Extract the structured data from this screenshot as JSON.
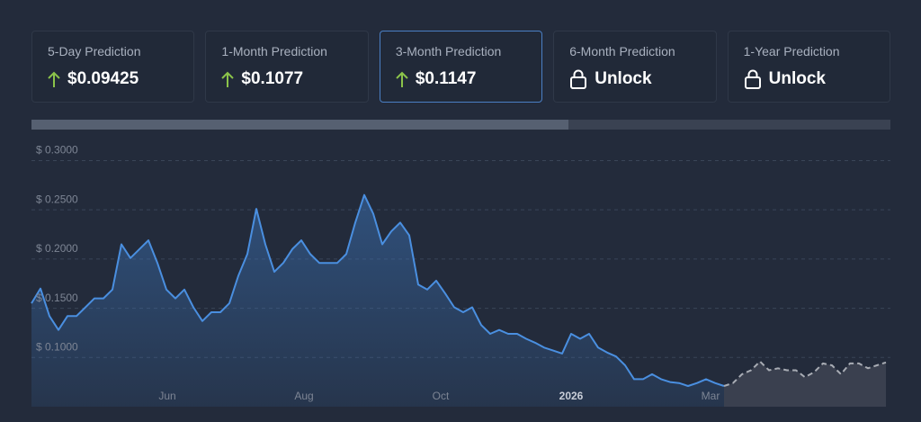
{
  "cards": [
    {
      "label": "5-Day Prediction",
      "value": "$0.09425",
      "icon": "up",
      "active": false
    },
    {
      "label": "1-Month Prediction",
      "value": "$0.1077",
      "icon": "up",
      "active": false
    },
    {
      "label": "3-Month Prediction",
      "value": "$0.1147",
      "icon": "up",
      "active": true
    },
    {
      "label": "6-Month Prediction",
      "value": "Unlock",
      "icon": "lock",
      "active": false
    },
    {
      "label": "1-Year Prediction",
      "value": "Unlock",
      "icon": "lock",
      "active": false
    }
  ],
  "chart_data": {
    "type": "line",
    "x": [
      0,
      1,
      2,
      3,
      4,
      5,
      6,
      7,
      8,
      9,
      10,
      11,
      12,
      13,
      14,
      15,
      16,
      17,
      18,
      19,
      20,
      21,
      22,
      23,
      24,
      25,
      26,
      27,
      28,
      29,
      30,
      31,
      32,
      33,
      34,
      35,
      36,
      37,
      38,
      39,
      40,
      41,
      42,
      43,
      44,
      45,
      46,
      47,
      48,
      49,
      50,
      51,
      52,
      53,
      54,
      55,
      56,
      57,
      58,
      59,
      60,
      61,
      62,
      63,
      64,
      65,
      66,
      67,
      68,
      69,
      70,
      71,
      72,
      73,
      74,
      75,
      76,
      77,
      78,
      79,
      80,
      81,
      82,
      83,
      84,
      85,
      86,
      87,
      88,
      89,
      90,
      91,
      92,
      93,
      94,
      95
    ],
    "series": [
      {
        "color": "#4a8fe0",
        "dashed": false,
        "fill": "#3a6fb0",
        "values": [
          0.155,
          0.17,
          0.142,
          0.128,
          0.142,
          0.142,
          0.151,
          0.16,
          0.16,
          0.169,
          0.215,
          0.201,
          0.21,
          0.219,
          0.196,
          0.169,
          0.16,
          0.169,
          0.151,
          0.137,
          0.146,
          0.146,
          0.155,
          0.183,
          0.205,
          0.251,
          0.215,
          0.187,
          0.196,
          0.21,
          0.219,
          0.205,
          0.196,
          0.196,
          0.196,
          0.205,
          0.237,
          0.265,
          0.246,
          0.215,
          0.228,
          0.237,
          0.224,
          0.174,
          0.169,
          0.178,
          0.165,
          0.151,
          0.146,
          0.151,
          0.133,
          0.124,
          0.128,
          0.124,
          0.124,
          0.119,
          0.115,
          0.11,
          0.107,
          0.104,
          0.124,
          0.119,
          0.124,
          0.11,
          0.105,
          0.101,
          0.092,
          0.078,
          0.078,
          0.083,
          0.078,
          0.075,
          0.074,
          0.071,
          0.074,
          0.078,
          0.074,
          0.071,
          null,
          null,
          null,
          null,
          null,
          null,
          null,
          null,
          null,
          null,
          null,
          null,
          null,
          null,
          null,
          null,
          null,
          null
        ]
      },
      {
        "color": "#a8acb4",
        "dashed": true,
        "fill": "#3a404f",
        "values": [
          null,
          null,
          null,
          null,
          null,
          null,
          null,
          null,
          null,
          null,
          null,
          null,
          null,
          null,
          null,
          null,
          null,
          null,
          null,
          null,
          null,
          null,
          null,
          null,
          null,
          null,
          null,
          null,
          null,
          null,
          null,
          null,
          null,
          null,
          null,
          null,
          null,
          null,
          null,
          null,
          null,
          null,
          null,
          null,
          null,
          null,
          null,
          null,
          null,
          null,
          null,
          null,
          null,
          null,
          null,
          null,
          null,
          null,
          null,
          null,
          null,
          null,
          null,
          null,
          null,
          null,
          null,
          null,
          null,
          null,
          null,
          null,
          null,
          null,
          null,
          null,
          null,
          0.071,
          0.074,
          0.083,
          0.087,
          0.096,
          0.087,
          0.089,
          0.087,
          0.087,
          0.08,
          0.085,
          0.094,
          0.092,
          0.083,
          0.094,
          0.094,
          0.089,
          0.092,
          0.095
        ]
      }
    ],
    "xlim": [
      0,
      95.5
    ],
    "xticks": [
      {
        "value": 15.1,
        "label": "Jun"
      },
      {
        "value": 30.3,
        "label": "Aug"
      },
      {
        "value": 45.5,
        "label": "Oct"
      },
      {
        "value": 60,
        "label": "2026"
      },
      {
        "value": 75.5,
        "label": "Mar"
      }
    ],
    "ylim": [
      0.05,
      0.326
    ],
    "yticks": [
      {
        "value": 0.1,
        "label": "$ 0.1000"
      },
      {
        "value": 0.15,
        "label": "$ 0.1500"
      },
      {
        "value": 0.2,
        "label": "$ 0.2000"
      },
      {
        "value": 0.25,
        "label": "$ 0.2500"
      },
      {
        "value": 0.3,
        "label": "$ 0.3000"
      }
    ],
    "grid": true
  }
}
